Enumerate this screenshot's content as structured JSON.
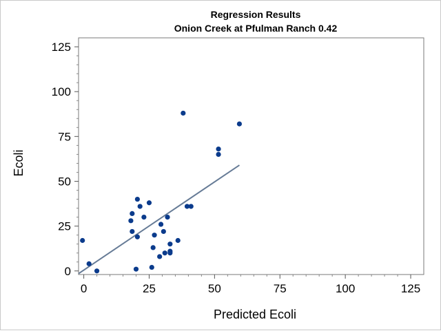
{
  "chart_data": {
    "type": "scatter",
    "title": "Regression Results",
    "subtitle": "Onion Creek at Pfulman Ranch 0.42",
    "xlabel": "Predicted Ecoli",
    "ylabel": "Ecoli",
    "xlim": [
      -2,
      130
    ],
    "ylim": [
      -2,
      130
    ],
    "xticks": [
      0,
      25,
      50,
      75,
      100,
      125
    ],
    "yticks": [
      0,
      25,
      50,
      75,
      100,
      125
    ],
    "xtick_labels": [
      "0",
      "25",
      "50",
      "75",
      "100",
      "125"
    ],
    "ytick_labels": [
      "0",
      "25",
      "50",
      "75",
      "100",
      "125"
    ],
    "grid": false,
    "marker_color": "#0b3b8c",
    "line_color": "#667b96",
    "points": [
      {
        "x": -0.5,
        "y": 17
      },
      {
        "x": 2,
        "y": 4
      },
      {
        "x": 5,
        "y": 0
      },
      {
        "x": 18,
        "y": 28
      },
      {
        "x": 18.5,
        "y": 32
      },
      {
        "x": 18.5,
        "y": 22
      },
      {
        "x": 20,
        "y": 1
      },
      {
        "x": 20.5,
        "y": 19
      },
      {
        "x": 20.5,
        "y": 40
      },
      {
        "x": 21.5,
        "y": 36
      },
      {
        "x": 23,
        "y": 30
      },
      {
        "x": 25,
        "y": 38
      },
      {
        "x": 26,
        "y": 2
      },
      {
        "x": 26.5,
        "y": 13
      },
      {
        "x": 27,
        "y": 20
      },
      {
        "x": 29,
        "y": 8
      },
      {
        "x": 29.5,
        "y": 26
      },
      {
        "x": 30.5,
        "y": 22
      },
      {
        "x": 31,
        "y": 10
      },
      {
        "x": 32,
        "y": 30
      },
      {
        "x": 33,
        "y": 15
      },
      {
        "x": 33,
        "y": 11
      },
      {
        "x": 33,
        "y": 10
      },
      {
        "x": 36,
        "y": 17
      },
      {
        "x": 38,
        "y": 88
      },
      {
        "x": 39.5,
        "y": 36
      },
      {
        "x": 41,
        "y": 36
      },
      {
        "x": 51.5,
        "y": 65
      },
      {
        "x": 51.5,
        "y": 68
      },
      {
        "x": 59.5,
        "y": 82
      }
    ],
    "regression_line": {
      "x": [
        -2,
        59.5
      ],
      "y": [
        -1.5,
        59
      ]
    }
  }
}
